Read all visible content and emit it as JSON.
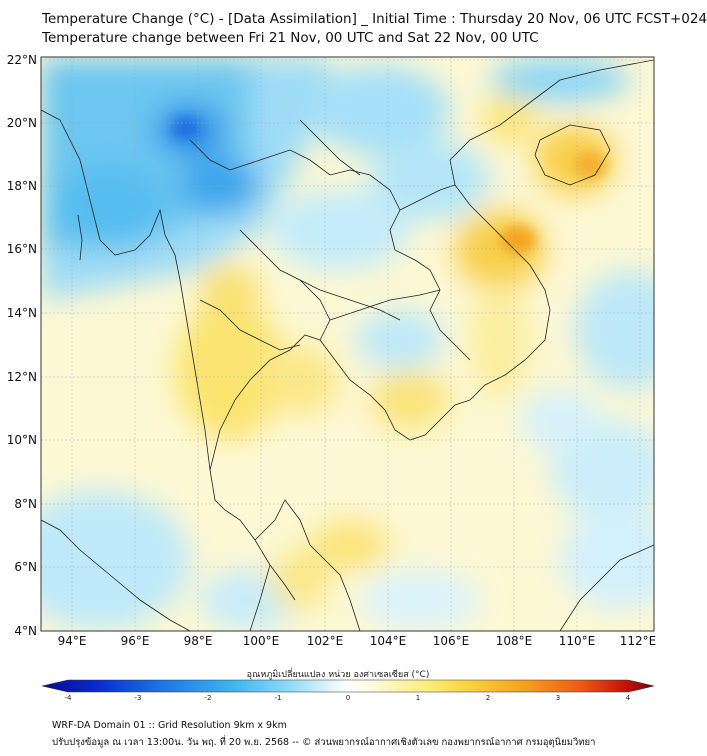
{
  "title": {
    "line1": "Temperature Change (°C) - [Data Assimilation] _ Initial Time : Thursday 20 Nov, 06 UTC FCST+024",
    "line2": "Temperature change between Fri 21 Nov, 00 UTC and Sat 22 Nov, 00 UTC"
  },
  "map": {
    "lat_labels": [
      "22°N",
      "20°N",
      "18°N",
      "16°N",
      "14°N",
      "12°N",
      "10°N",
      "8°N",
      "6°N",
      "4°N"
    ],
    "lon_labels": [
      "94°E",
      "96°E",
      "98°E",
      "100°E",
      "102°E",
      "104°E",
      "106°E",
      "108°E",
      "110°E",
      "112°E"
    ],
    "lat_range": [
      4,
      22.3
    ],
    "lon_range": [
      93.1,
      112.8
    ]
  },
  "colorbar": {
    "label": "อุณหภูมิเปลี่ยนแปลง หน่วย องศาเซลเซียส (°C)",
    "ticks": [
      "-4",
      "-3",
      "-2",
      "-1",
      "0",
      "1",
      "2",
      "3",
      "4"
    ],
    "range": [
      -4,
      4
    ],
    "colors": [
      "#08088c",
      "#0a2ad0",
      "#1e78e6",
      "#3cb4f0",
      "#8cd8f8",
      "#e0f4fc",
      "#ffffff",
      "#fdf8c8",
      "#fbee78",
      "#f8d23c",
      "#f5a01e",
      "#ee5a14",
      "#c8140a",
      "#780008"
    ]
  },
  "footer": {
    "line1": "WRF-DA Domain 01 :: Grid Resolution 9km x 9km",
    "line2": "ปรับปรุงข้อมูล ณ เวลา 13:00น. วัน พฤ. ที่ 20 พ.ย. 2568 -- © ส่วนพยากรณ์อากาศเชิงตัวเลข กองพยากรณ์อากาศ กรมอุตุนิยมวิทยา"
  }
}
